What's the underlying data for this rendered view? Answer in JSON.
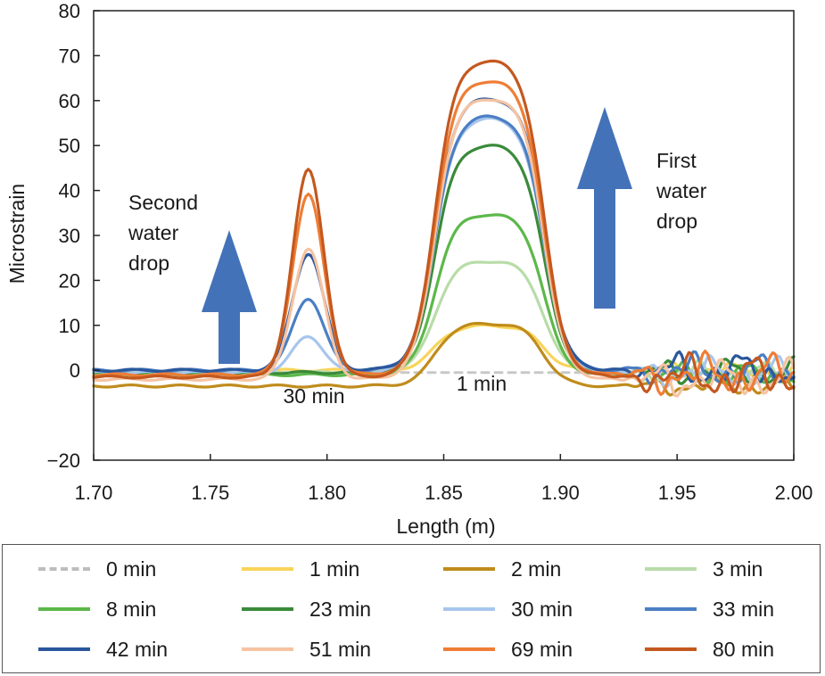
{
  "chart_data": {
    "type": "line",
    "title": "",
    "xlabel": "Length (m)",
    "ylabel": "Microstrain",
    "xlim": [
      1.7,
      2.0
    ],
    "ylim": [
      -20,
      80
    ],
    "x_ticks": [
      "1.70",
      "1.75",
      "1.80",
      "1.85",
      "1.90",
      "1.95",
      "2.00"
    ],
    "y_ticks": [
      "80",
      "70",
      "60",
      "50",
      "40",
      "30",
      "20",
      "10",
      "0",
      "−20"
    ],
    "grid": false,
    "legend_position": "bottom",
    "series": [
      {
        "name": "0 min",
        "color": "#c8c8c8",
        "dashed": true,
        "peak1": 0,
        "peak2": 0,
        "base": -0.5
      },
      {
        "name": "1 min",
        "color": "#f8d45a",
        "peak1": 0,
        "peak2": 10,
        "base": 0
      },
      {
        "name": "2 min",
        "color": "#bf8c1c",
        "peak1": 0,
        "peak2": 14,
        "base": -3.5
      },
      {
        "name": "3 min",
        "color": "#b8dca8",
        "peak1": 0,
        "peak2": 25,
        "base": -0.5
      },
      {
        "name": "8 min",
        "color": "#5cb84a",
        "peak1": 0,
        "peak2": 36,
        "base": -1
      },
      {
        "name": "23 min",
        "color": "#3a8a3a",
        "peak1": 0,
        "peak2": 51,
        "base": -0.5
      },
      {
        "name": "30 min",
        "color": "#a8c6ec",
        "peak1": 8,
        "peak2": 57,
        "base": -0.5
      },
      {
        "name": "33 min",
        "color": "#4b7fc4",
        "peak1": 16,
        "peak2": 57,
        "base": 0
      },
      {
        "name": "42 min",
        "color": "#2a579d",
        "peak1": 26,
        "peak2": 61,
        "base": 0
      },
      {
        "name": "51 min",
        "color": "#f6c3a2",
        "peak1": 29,
        "peak2": 63,
        "base": -2
      },
      {
        "name": "69 min",
        "color": "#ef7d35",
        "peak1": 40,
        "peak2": 66,
        "base": -1
      },
      {
        "name": "80 min",
        "color": "#c4581f",
        "peak1": 46,
        "peak2": 71,
        "base": -1.5
      }
    ],
    "annotations": [
      {
        "label_lines": [
          "Second",
          "water",
          "drop"
        ],
        "near_x": 1.755,
        "near_y": 38
      },
      {
        "label_lines": [
          "First",
          "water",
          "drop"
        ],
        "near_x": 1.925,
        "near_y": 48
      },
      {
        "label": "30 min",
        "x": 1.795,
        "y": 3
      },
      {
        "label": "1 min",
        "x": 1.867,
        "y": 5
      }
    ],
    "arrow_color": "#4472b8"
  }
}
